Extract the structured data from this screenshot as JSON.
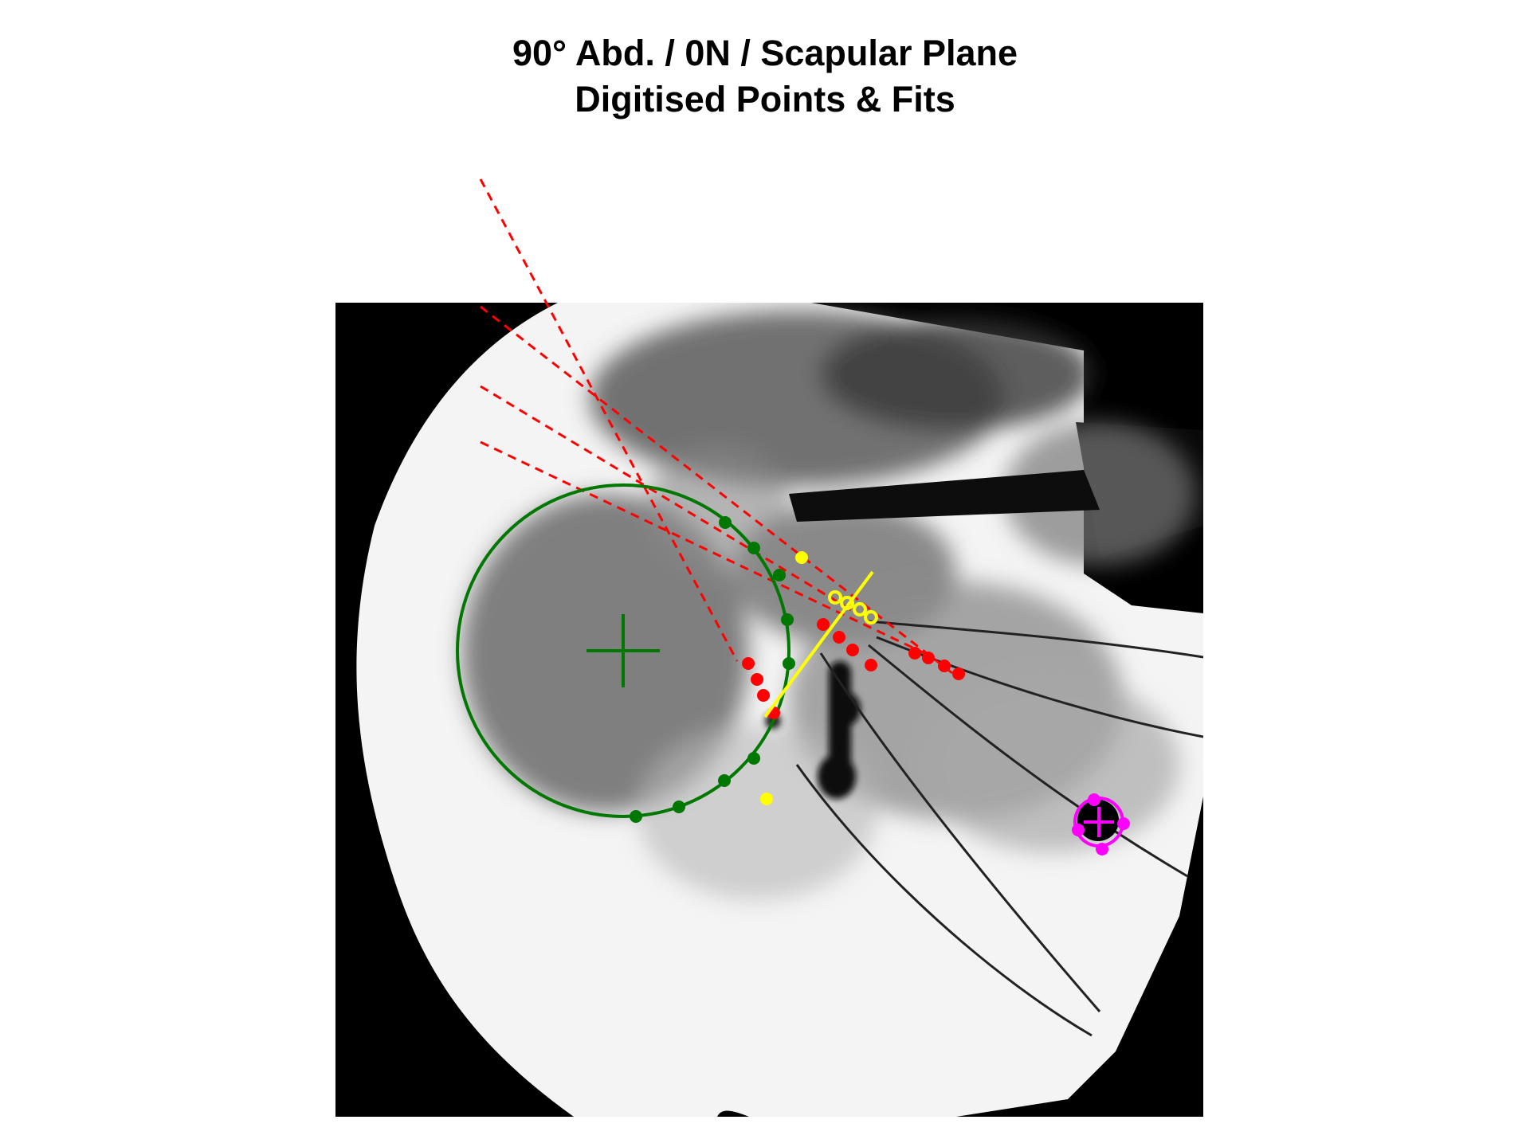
{
  "title": {
    "line1": "90° Abd. / 0N / Scapular Plane",
    "line2": "Digitised Points & Fits"
  },
  "colors": {
    "humeral_head": "#007700",
    "glenoid": "#ff0000",
    "fit_line": "#ffff00",
    "marker": "#ff00ff",
    "image_bg": "#000000"
  },
  "icons": {
    "center_marker": "plus-crosshair",
    "digitised_point": "filled-circle"
  }
}
